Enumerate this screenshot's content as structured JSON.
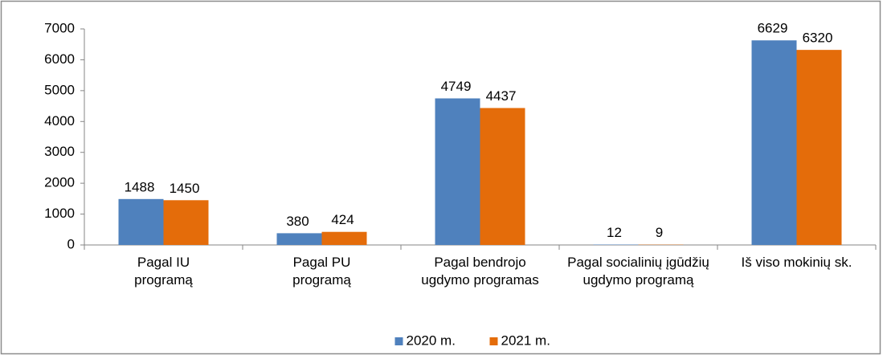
{
  "chart_data": {
    "type": "bar",
    "categories": [
      "Pagal IU programą",
      "Pagal PU programą",
      "Pagal bendrojo ugdymo programas",
      "Pagal socialinių įgūdžių ugdymo programą",
      "Iš viso mokinių sk."
    ],
    "series": [
      {
        "name": "2020 m.",
        "color": "#4f81bd",
        "values": [
          1488,
          380,
          4749,
          12,
          6629
        ]
      },
      {
        "name": "2021 m.",
        "color": "#e46c0a",
        "values": [
          1450,
          424,
          4437,
          9,
          6320
        ]
      }
    ],
    "ylim": [
      0,
      7000
    ],
    "yticks": [
      0,
      1000,
      2000,
      3000,
      4000,
      5000,
      6000,
      7000
    ],
    "legend": "bottom",
    "grid": false
  }
}
